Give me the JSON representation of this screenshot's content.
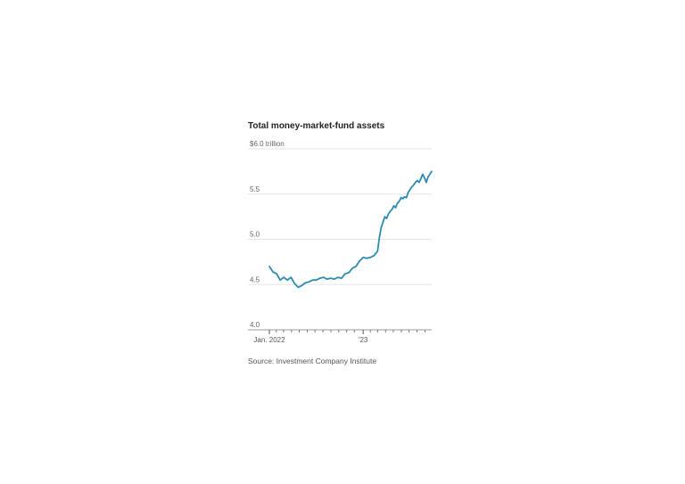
{
  "chart_data": {
    "type": "line",
    "title": "Total money-market-fund assets",
    "source": "Source: Investment Company Institute",
    "ylim": [
      4.0,
      6.0
    ],
    "yticks": [
      {
        "value": 6.0,
        "label": "$6.0 trillion"
      },
      {
        "value": 5.5,
        "label": "5.5"
      },
      {
        "value": 5.0,
        "label": "5.0"
      },
      {
        "value": 4.5,
        "label": "4.5"
      },
      {
        "value": 4.0,
        "label": "4.0"
      }
    ],
    "xlim": [
      "2022-01-05",
      "2023-09-27"
    ],
    "xtick_labels": [
      {
        "date": "2022-01-05",
        "label": "Jan. 2022"
      },
      {
        "date": "2023-01-04",
        "label": "'23"
      }
    ],
    "month_ticks": [
      "2022-02-01",
      "2022-03-01",
      "2022-04-01",
      "2022-05-01",
      "2022-06-01",
      "2022-07-01",
      "2022-08-01",
      "2022-09-01",
      "2022-10-01",
      "2022-11-01",
      "2022-12-01",
      "2023-02-01",
      "2023-03-01",
      "2023-04-01",
      "2023-05-01",
      "2023-06-01",
      "2023-07-01",
      "2023-08-01",
      "2023-09-01"
    ],
    "grid": true,
    "series": [
      {
        "color": "#2e8bb0",
        "x": [
          "2022-01-05",
          "2022-01-19",
          "2022-02-02",
          "2022-02-16",
          "2022-03-02",
          "2022-03-16",
          "2022-03-30",
          "2022-04-13",
          "2022-04-27",
          "2022-05-11",
          "2022-05-25",
          "2022-06-08",
          "2022-06-22",
          "2022-07-06",
          "2022-07-20",
          "2022-08-03",
          "2022-08-17",
          "2022-08-31",
          "2022-09-14",
          "2022-09-28",
          "2022-10-12",
          "2022-10-26",
          "2022-11-09",
          "2022-11-23",
          "2022-12-07",
          "2022-12-21",
          "2023-01-04",
          "2023-01-18",
          "2023-02-01",
          "2023-02-15",
          "2023-03-01",
          "2023-03-08",
          "2023-03-15",
          "2023-03-22",
          "2023-03-29",
          "2023-04-05",
          "2023-04-12",
          "2023-04-19",
          "2023-04-26",
          "2023-05-03",
          "2023-05-10",
          "2023-05-17",
          "2023-05-24",
          "2023-05-31",
          "2023-06-07",
          "2023-06-14",
          "2023-06-21",
          "2023-06-28",
          "2023-07-05",
          "2023-07-12",
          "2023-07-19",
          "2023-07-26",
          "2023-08-02",
          "2023-08-09",
          "2023-08-16",
          "2023-08-23",
          "2023-08-30",
          "2023-09-06",
          "2023-09-13",
          "2023-09-20",
          "2023-09-27"
        ],
        "y": [
          4.7,
          4.64,
          4.62,
          4.55,
          4.58,
          4.55,
          4.58,
          4.51,
          4.47,
          4.49,
          4.52,
          4.53,
          4.55,
          4.55,
          4.57,
          4.58,
          4.56,
          4.57,
          4.56,
          4.58,
          4.57,
          4.62,
          4.63,
          4.68,
          4.7,
          4.76,
          4.8,
          4.79,
          4.8,
          4.82,
          4.87,
          5.02,
          5.13,
          5.19,
          5.25,
          5.23,
          5.28,
          5.31,
          5.33,
          5.37,
          5.35,
          5.4,
          5.42,
          5.46,
          5.45,
          5.47,
          5.46,
          5.52,
          5.55,
          5.58,
          5.6,
          5.63,
          5.65,
          5.63,
          5.67,
          5.72,
          5.68,
          5.63,
          5.69,
          5.72,
          5.75
        ]
      }
    ]
  }
}
